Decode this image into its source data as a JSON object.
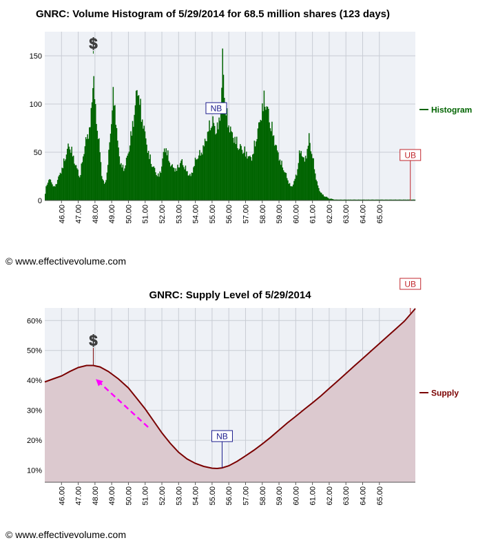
{
  "panels": [
    {
      "title": "GNRC: Volume Histogram of 5/29/2014 for 68.5 million shares (123 days)",
      "legend_label": "Histogram",
      "copyright": "© www.effectivevolume.com"
    },
    {
      "title": "GNRC: Supply Level of 5/29/2014",
      "legend_label": "Supply",
      "copyright": "© www.effectivevolume.com"
    }
  ],
  "markers": {
    "dollar": "$",
    "nb": "NB",
    "ub": "UB"
  },
  "colors": {
    "plot_bg": "#eef1f6",
    "grid": "#c8ccd4",
    "histogram": "#006400",
    "supply_line": "#7a0000",
    "supply_fill": "#dcc9cf",
    "nb": "#1a1a8c",
    "ub": "#c0262c",
    "dollar": "#444444",
    "arrow": "#ff00ff"
  },
  "chart_data": [
    {
      "type": "bar",
      "title": "GNRC: Volume Histogram of 5/29/2014 for 68.5 million shares (123 days)",
      "xlabel": "",
      "ylabel": "",
      "x_tick_labels": [
        "46.00",
        "47.00",
        "48.00",
        "49.00",
        "50.00",
        "51.00",
        "52.00",
        "53.00",
        "54.00",
        "55.00",
        "56.00",
        "57.00",
        "58.00",
        "59.00",
        "60.00",
        "61.00",
        "62.00",
        "63.00",
        "64.00",
        "65.00"
      ],
      "x_ticks": [
        46,
        47,
        48,
        49,
        50,
        51,
        52,
        53,
        54,
        55,
        56,
        57,
        58,
        59,
        60,
        61,
        62,
        63,
        64,
        65
      ],
      "xlim": [
        45.0,
        67.15
      ],
      "y_ticks": [
        0,
        50,
        100,
        150
      ],
      "ylim": [
        0,
        175
      ],
      "grid": true,
      "legend": "right",
      "series": [
        {
          "name": "Histogram",
          "profile": [
            [
              45.0,
              5
            ],
            [
              45.1,
              18
            ],
            [
              45.25,
              24
            ],
            [
              45.4,
              22
            ],
            [
              45.55,
              15
            ],
            [
              45.7,
              20
            ],
            [
              45.85,
              28
            ],
            [
              46.0,
              35
            ],
            [
              46.15,
              45
            ],
            [
              46.3,
              55
            ],
            [
              46.45,
              64
            ],
            [
              46.6,
              58
            ],
            [
              46.75,
              46
            ],
            [
              46.9,
              38
            ],
            [
              47.0,
              32
            ],
            [
              47.1,
              27
            ],
            [
              47.2,
              40
            ],
            [
              47.35,
              58
            ],
            [
              47.5,
              72
            ],
            [
              47.65,
              80
            ],
            [
              47.75,
              92
            ],
            [
              47.85,
              125
            ],
            [
              47.9,
              158
            ],
            [
              47.95,
              132
            ],
            [
              48.0,
              106
            ],
            [
              48.1,
              92
            ],
            [
              48.2,
              75
            ],
            [
              48.3,
              55
            ],
            [
              48.4,
              30
            ],
            [
              48.5,
              22
            ],
            [
              48.6,
              18
            ],
            [
              48.7,
              30
            ],
            [
              48.8,
              48
            ],
            [
              48.9,
              72
            ],
            [
              49.0,
              98
            ],
            [
              49.1,
              122
            ],
            [
              49.2,
              108
            ],
            [
              49.3,
              80
            ],
            [
              49.4,
              58
            ],
            [
              49.5,
              46
            ],
            [
              49.6,
              40
            ],
            [
              49.7,
              36
            ],
            [
              49.85,
              44
            ],
            [
              50.0,
              55
            ],
            [
              50.15,
              75
            ],
            [
              50.3,
              92
            ],
            [
              50.45,
              118
            ],
            [
              50.6,
              130
            ],
            [
              50.75,
              100
            ],
            [
              50.9,
              88
            ],
            [
              51.05,
              68
            ],
            [
              51.2,
              55
            ],
            [
              51.35,
              45
            ],
            [
              51.5,
              38
            ],
            [
              51.65,
              32
            ],
            [
              51.8,
              28
            ],
            [
              51.95,
              35
            ],
            [
              52.1,
              55
            ],
            [
              52.25,
              62
            ],
            [
              52.4,
              48
            ],
            [
              52.55,
              40
            ],
            [
              52.7,
              38
            ],
            [
              52.85,
              35
            ],
            [
              53.0,
              40
            ],
            [
              53.15,
              45
            ],
            [
              53.3,
              42
            ],
            [
              53.45,
              35
            ],
            [
              53.6,
              30
            ],
            [
              53.75,
              28
            ],
            [
              53.9,
              40
            ],
            [
              54.05,
              48
            ],
            [
              54.2,
              52
            ],
            [
              54.35,
              55
            ],
            [
              54.5,
              62
            ],
            [
              54.65,
              72
            ],
            [
              54.8,
              82
            ],
            [
              54.95,
              92
            ],
            [
              55.1,
              88
            ],
            [
              55.25,
              80
            ],
            [
              55.4,
              88
            ],
            [
              55.55,
              115
            ],
            [
              55.62,
              165
            ],
            [
              55.7,
              135
            ],
            [
              55.8,
              105
            ],
            [
              55.9,
              95
            ],
            [
              56.0,
              88
            ],
            [
              56.15,
              78
            ],
            [
              56.3,
              72
            ],
            [
              56.45,
              68
            ],
            [
              56.6,
              62
            ],
            [
              56.75,
              60
            ],
            [
              56.9,
              58
            ],
            [
              57.05,
              54
            ],
            [
              57.2,
              50
            ],
            [
              57.35,
              48
            ],
            [
              57.5,
              60
            ],
            [
              57.65,
              72
            ],
            [
              57.8,
              86
            ],
            [
              57.95,
              100
            ],
            [
              58.1,
              117
            ],
            [
              58.25,
              110
            ],
            [
              58.4,
              96
            ],
            [
              58.55,
              85
            ],
            [
              58.7,
              72
            ],
            [
              58.85,
              60
            ],
            [
              59.0,
              50
            ],
            [
              59.15,
              42
            ],
            [
              59.3,
              35
            ],
            [
              59.45,
              28
            ],
            [
              59.6,
              20
            ],
            [
              59.75,
              15
            ],
            [
              59.9,
              22
            ],
            [
              60.05,
              30
            ],
            [
              60.2,
              52
            ],
            [
              60.35,
              58
            ],
            [
              60.5,
              44
            ],
            [
              60.65,
              54
            ],
            [
              60.8,
              72
            ],
            [
              60.95,
              55
            ],
            [
              61.1,
              40
            ],
            [
              61.25,
              22
            ],
            [
              61.4,
              12
            ],
            [
              61.55,
              8
            ],
            [
              61.7,
              5
            ],
            [
              61.85,
              4
            ],
            [
              62.0,
              2
            ],
            [
              62.15,
              2
            ],
            [
              62.3,
              1
            ],
            [
              62.45,
              1
            ],
            [
              62.6,
              1
            ],
            [
              62.75,
              1
            ],
            [
              63.0,
              1
            ],
            [
              63.5,
              1
            ],
            [
              64.0,
              1
            ],
            [
              64.5,
              1
            ],
            [
              65.0,
              1
            ],
            [
              65.5,
              1
            ],
            [
              66.0,
              1
            ],
            [
              66.5,
              1
            ],
            [
              67.15,
              1
            ]
          ]
        }
      ],
      "annotations": [
        {
          "label": "$",
          "x": 47.9,
          "y": 158
        },
        {
          "label": "NB",
          "x": 55.25,
          "y": 92
        },
        {
          "label": "UB",
          "x": 66.85,
          "y": 45
        }
      ]
    },
    {
      "type": "area",
      "title": "GNRC: Supply Level of 5/29/2014",
      "xlabel": "",
      "ylabel": "",
      "x_tick_labels": [
        "46.00",
        "47.00",
        "48.00",
        "49.00",
        "50.00",
        "51.00",
        "52.00",
        "53.00",
        "54.00",
        "55.00",
        "56.00",
        "57.00",
        "58.00",
        "59.00",
        "60.00",
        "61.00",
        "62.00",
        "63.00",
        "64.00",
        "65.00"
      ],
      "x_ticks": [
        46,
        47,
        48,
        49,
        50,
        51,
        52,
        53,
        54,
        55,
        56,
        57,
        58,
        59,
        60,
        61,
        62,
        63,
        64,
        65
      ],
      "xlim": [
        45.0,
        67.15
      ],
      "y_tick_labels": [
        "10%",
        "20%",
        "30%",
        "40%",
        "50%",
        "60%"
      ],
      "y_ticks": [
        10,
        20,
        30,
        40,
        50,
        60
      ],
      "ylim": [
        6,
        64.2
      ],
      "grid": true,
      "legend": "right",
      "series": [
        {
          "name": "Supply",
          "x": [
            45.0,
            45.5,
            46.0,
            46.5,
            47.0,
            47.5,
            47.9,
            48.3,
            48.8,
            49.4,
            50.0,
            50.5,
            51.0,
            51.5,
            52.0,
            52.5,
            53.0,
            53.5,
            54.0,
            54.5,
            55.0,
            55.3,
            55.6,
            56.0,
            56.5,
            57.0,
            57.5,
            58.0,
            58.5,
            59.0,
            59.5,
            60.0,
            60.5,
            61.0,
            61.5,
            62.0,
            62.5,
            63.0,
            63.5,
            64.0,
            64.5,
            65.0,
            65.5,
            66.0,
            66.5,
            67.15
          ],
          "values": [
            39.5,
            40.5,
            41.5,
            43.0,
            44.3,
            45.0,
            45.0,
            44.5,
            43.0,
            40.5,
            37.5,
            34.0,
            30.5,
            26.5,
            22.5,
            19.0,
            16.0,
            13.8,
            12.3,
            11.3,
            10.7,
            10.6,
            10.8,
            11.5,
            13.0,
            14.8,
            16.7,
            18.8,
            21.0,
            23.4,
            25.8,
            28.0,
            30.3,
            32.5,
            34.8,
            37.3,
            39.8,
            42.3,
            44.8,
            47.3,
            49.8,
            52.3,
            54.8,
            57.3,
            59.8,
            64.0
          ]
        }
      ],
      "annotations": [
        {
          "label": "$",
          "x": 47.9,
          "y": 45.0
        },
        {
          "label": "NB",
          "x": 55.6,
          "y": 10.8
        },
        {
          "label": "UB",
          "x": 66.85,
          "y": 62.5
        }
      ]
    }
  ]
}
